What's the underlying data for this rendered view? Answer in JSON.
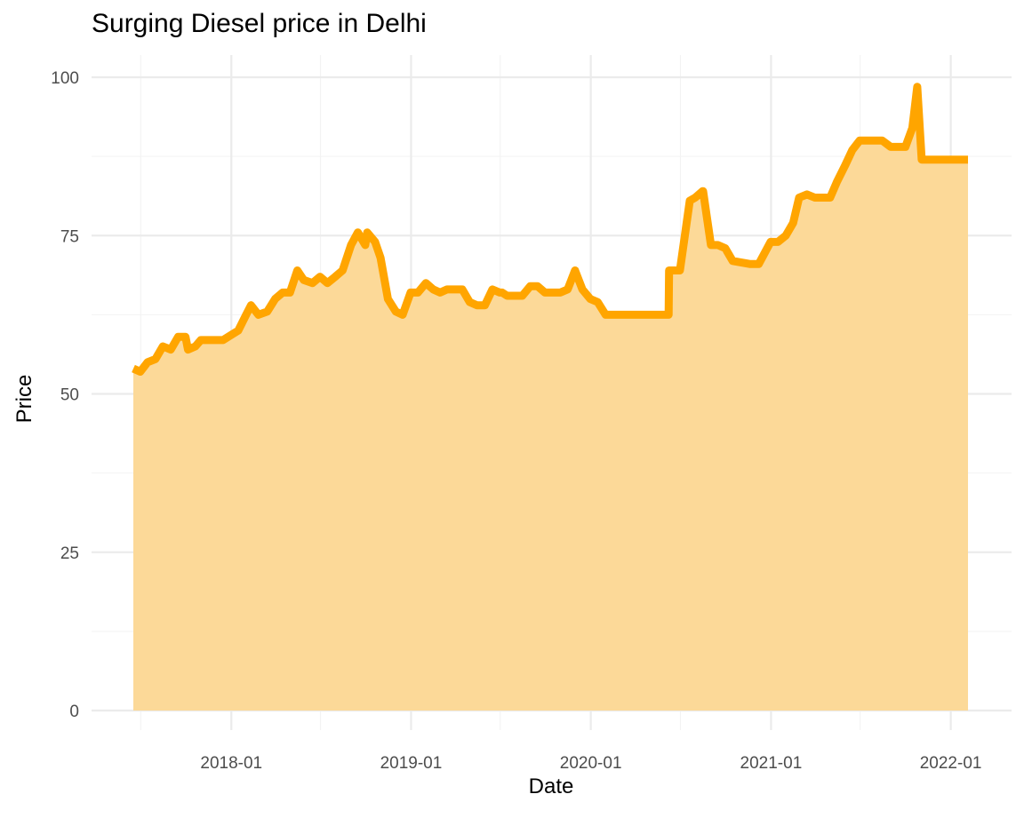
{
  "chart_data": {
    "type": "area",
    "title": "Surging Diesel price in Delhi",
    "xlabel": "Date",
    "ylabel": "Price",
    "ylim": [
      0,
      100
    ],
    "yticks": [
      0,
      25,
      50,
      75,
      100
    ],
    "xlim": [
      "2017-06-01",
      "2022-02-20"
    ],
    "xticks": [
      {
        "date": "2018-01-01",
        "label": "2018-01"
      },
      {
        "date": "2019-01-01",
        "label": "2019-01"
      },
      {
        "date": "2020-01-01",
        "label": "2020-01"
      },
      {
        "date": "2021-01-01",
        "label": "2021-01"
      },
      {
        "date": "2022-01-01",
        "label": "2022-01"
      }
    ],
    "x_minor_breaks": [
      "2017-07-01",
      "2018-07-01",
      "2019-07-01",
      "2020-07-01",
      "2021-07-01"
    ],
    "grid": true,
    "legend": "none",
    "line_color": "#FFA500",
    "fill_color": "#FCD998",
    "series": [
      {
        "x": [
          "2017-06-16",
          "2017-06-30",
          "2017-07-15",
          "2017-07-31",
          "2017-08-15",
          "2017-08-31",
          "2017-09-15",
          "2017-09-30",
          "2017-10-05",
          "2017-10-20",
          "2017-10-31",
          "2017-11-20",
          "2017-12-15",
          "2018-01-15",
          "2018-01-31",
          "2018-02-10",
          "2018-02-25",
          "2018-03-15",
          "2018-03-31",
          "2018-04-15",
          "2018-04-30",
          "2018-05-15",
          "2018-05-28",
          "2018-06-15",
          "2018-06-30",
          "2018-07-15",
          "2018-07-31",
          "2018-08-15",
          "2018-09-01",
          "2018-09-15",
          "2018-09-30",
          "2018-10-04",
          "2018-10-20",
          "2018-10-31",
          "2018-11-15",
          "2018-12-01",
          "2018-12-15",
          "2018-12-31",
          "2019-01-15",
          "2019-01-31",
          "2019-02-15",
          "2019-03-01",
          "2019-03-15",
          "2019-03-31",
          "2019-04-15",
          "2019-04-30",
          "2019-05-15",
          "2019-05-31",
          "2019-06-15",
          "2019-06-30",
          "2019-07-05",
          "2019-07-15",
          "2019-07-31",
          "2019-08-15",
          "2019-08-31",
          "2019-09-15",
          "2019-09-30",
          "2019-10-15",
          "2019-10-31",
          "2019-11-15",
          "2019-11-30",
          "2019-12-15",
          "2019-12-31",
          "2020-01-15",
          "2020-01-31",
          "2020-02-15",
          "2020-02-29",
          "2020-03-15",
          "2020-06-07",
          "2020-06-08",
          "2020-06-30",
          "2020-07-20",
          "2020-07-31",
          "2020-08-15",
          "2020-08-16",
          "2020-09-01",
          "2020-09-15",
          "2020-09-30",
          "2020-10-15",
          "2020-11-20",
          "2020-12-07",
          "2020-12-31",
          "2021-01-15",
          "2021-01-31",
          "2021-02-15",
          "2021-02-27",
          "2021-03-15",
          "2021-03-31",
          "2021-04-15",
          "2021-05-01",
          "2021-05-15",
          "2021-05-31",
          "2021-06-15",
          "2021-06-30",
          "2021-07-15",
          "2021-08-15",
          "2021-09-01",
          "2021-09-15",
          "2021-10-01",
          "2021-10-15",
          "2021-10-25",
          "2021-11-03",
          "2021-11-04",
          "2022-02-05"
        ],
        "y": [
          54,
          53.5,
          55,
          55.5,
          57.5,
          57,
          59,
          59,
          57,
          57.5,
          58.5,
          58.5,
          58.5,
          60,
          62.5,
          64,
          62.5,
          63,
          65,
          66,
          66,
          69.5,
          68,
          67.5,
          68.5,
          67.5,
          68.5,
          69.5,
          73.5,
          75.5,
          73.5,
          75.5,
          74,
          71.5,
          65,
          63,
          62.5,
          66,
          66,
          67.5,
          66.5,
          66,
          66.5,
          66.5,
          66.5,
          64.5,
          64,
          64,
          66.5,
          66,
          66,
          65.5,
          65.5,
          65.5,
          67,
          67,
          66,
          66,
          66,
          66.5,
          69.5,
          66.5,
          65,
          64.5,
          62.5,
          62.5,
          62.5,
          62.5,
          62.5,
          69.5,
          69.5,
          80.5,
          81,
          82,
          82,
          73.5,
          73.5,
          73,
          71,
          70.5,
          70.5,
          74,
          74,
          75,
          77,
          81,
          81.5,
          81,
          81,
          81,
          83.5,
          86,
          88.5,
          90,
          90,
          90,
          89,
          89,
          89,
          92,
          98.5,
          87,
          87,
          87
        ]
      }
    ]
  }
}
